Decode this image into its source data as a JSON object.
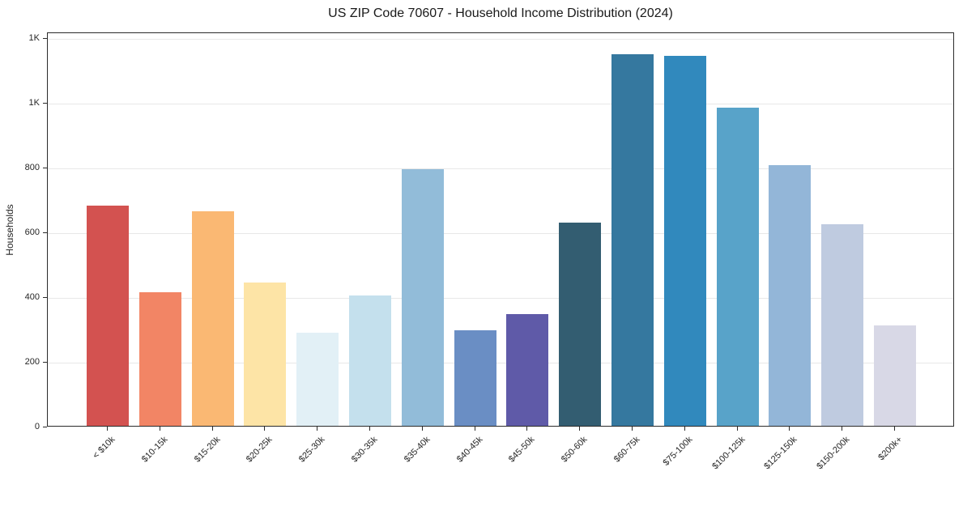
{
  "title": "US ZIP Code 70607 - Household Income Distribution (2024)",
  "y_axis": {
    "label": "Households",
    "ticks": [
      {
        "value": 0,
        "label": "0"
      },
      {
        "value": 200,
        "label": "200"
      },
      {
        "value": 400,
        "label": "400"
      },
      {
        "value": 600,
        "label": "600"
      },
      {
        "value": 800,
        "label": "800"
      },
      {
        "value": 1000,
        "label": "1K"
      },
      {
        "value": 1200,
        "label": "1K"
      }
    ]
  },
  "chart_data": {
    "type": "bar",
    "title": "US ZIP Code 70607 - Household Income Distribution (2024)",
    "xlabel": "",
    "ylabel": "Households",
    "ylim": [
      0,
      1218
    ],
    "grid": true,
    "legend": false,
    "categories": [
      "< $10k",
      "$10-15k",
      "$15-20k",
      "$20-25k",
      "$25-30k",
      "$30-35k",
      "$35-40k",
      "$40-45k",
      "$45-50k",
      "$50-60k",
      "$60-75k",
      "$75-100k",
      "$100-125k",
      "$125-150k",
      "$150-200k",
      "$200k+"
    ],
    "values": [
      680,
      413,
      662,
      442,
      287,
      403,
      792,
      294,
      346,
      627,
      1147,
      1142,
      983,
      805,
      624,
      310
    ],
    "bar_colors": [
      "#d35250",
      "#f28565",
      "#fab873",
      "#fde4a6",
      "#e2f0f6",
      "#c4e0ed",
      "#92bcd9",
      "#6a8ec4",
      "#5f5aa8",
      "#335d71",
      "#35789f",
      "#3189bd",
      "#58a3c9",
      "#93b6d8",
      "#bfcbe0",
      "#d8d8e6"
    ],
    "gridline_color": "#e8e8e8",
    "spine_color": "#2b2b2b",
    "text_color": "#262626",
    "background_color": "#ffffff"
  }
}
